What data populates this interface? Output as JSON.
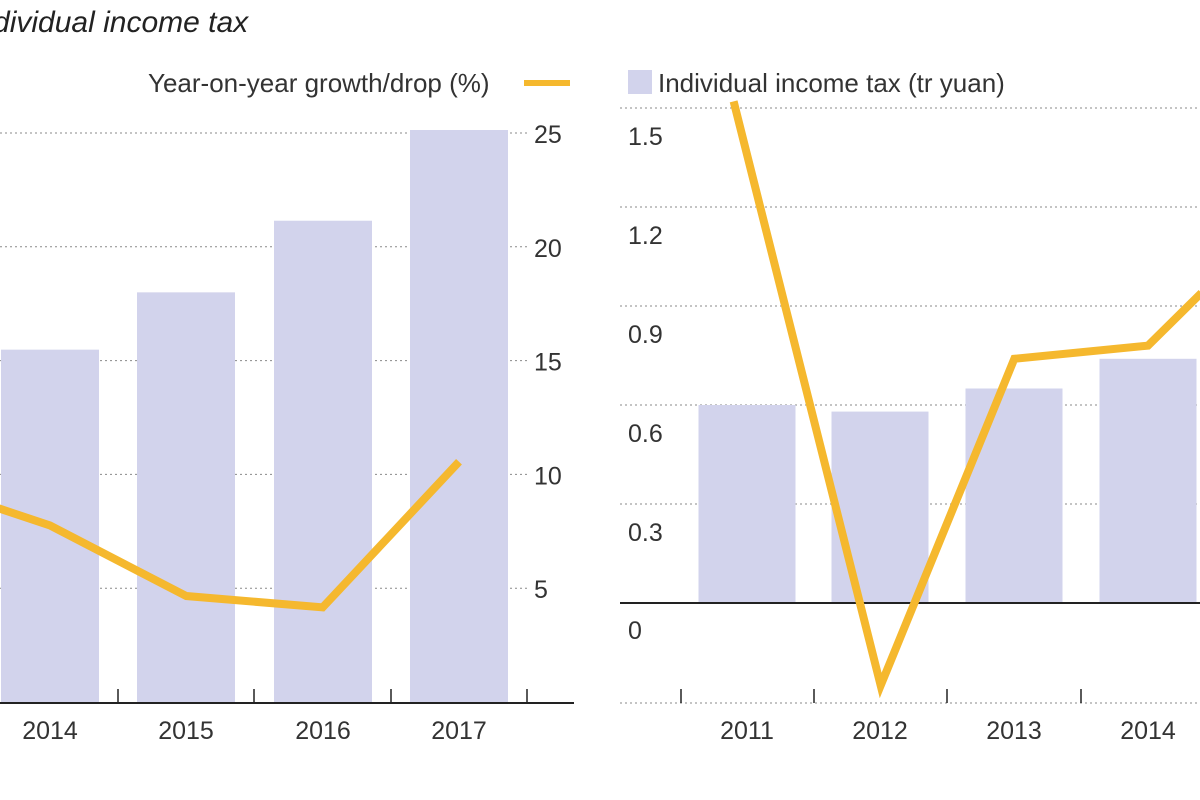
{
  "title": "Individual income tax",
  "colors": {
    "bar": "#d2d3ec",
    "line": "#f5b82e",
    "axis": "#222222",
    "grid": "#8a8a8a"
  },
  "legend": {
    "growth_label": "Year-on-year growth/drop (%)",
    "tax_label": "Individual income tax (tr yuan)"
  },
  "chart_data": [
    {
      "type": "bar+line",
      "panel": "left",
      "categories": [
        "2014",
        "2015",
        "2016",
        "2017"
      ],
      "series": [
        {
          "name": "Individual income tax (tr yuan)",
          "kind": "bar",
          "values": [
            0.74,
            0.86,
            1.01,
            1.2
          ]
        },
        {
          "name": "Year-on-year growth/drop (%)",
          "kind": "line",
          "points": [
            {
              "x": 2013.6,
              "y": 8.6
            },
            {
              "x": 2014,
              "y": 7.8
            },
            {
              "x": 2015,
              "y": 4.7
            },
            {
              "x": 2016,
              "y": 4.2
            },
            {
              "x": 2017,
              "y": 10.6
            }
          ]
        }
      ],
      "bar_axis": {
        "ylim": [
          0,
          1.2
        ]
      },
      "right_axis": {
        "ylim": [
          0,
          25
        ],
        "ticks": [
          5,
          10,
          15,
          20,
          25
        ]
      }
    },
    {
      "type": "bar+line",
      "panel": "right",
      "categories": [
        "2011",
        "2012",
        "2013",
        "2014"
      ],
      "series": [
        {
          "name": "Individual income tax (tr yuan)",
          "kind": "bar",
          "values": [
            0.6,
            0.58,
            0.65,
            0.74
          ]
        },
        {
          "name": "Year-on-year growth/drop (%)",
          "kind": "line",
          "points": [
            {
              "x": 2010.9,
              "y": 1.52
            },
            {
              "x": 2012,
              "y": -0.25
            },
            {
              "x": 2013,
              "y": 0.74
            },
            {
              "x": 2014,
              "y": 0.78
            },
            {
              "x": 2014.4,
              "y": 0.94
            }
          ]
        }
      ],
      "left_axis": {
        "ylim": [
          -0.3,
          1.5
        ],
        "ticks": [
          0,
          0.3,
          0.6,
          0.9,
          1.2,
          1.5
        ],
        "tick_labels": [
          "0",
          "0.3",
          "0.6",
          "0.9",
          "1.2",
          "1.5"
        ]
      }
    }
  ]
}
